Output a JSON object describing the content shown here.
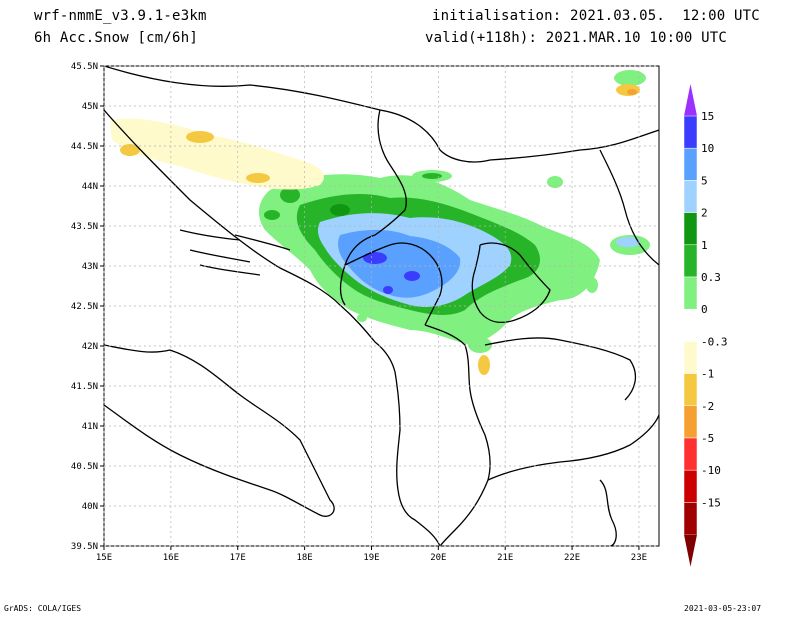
{
  "header": {
    "model": "wrf-nmmE_v3.9.1-e3km",
    "variable": "6h Acc.Snow [cm/6h]",
    "init": "initialisation: 2021.03.05.  12:00 UTC",
    "valid": "valid(+118h): 2021.MAR.10 10:00 UTC"
  },
  "map": {
    "lon_labels": [
      "15E",
      "16E",
      "17E",
      "18E",
      "19E",
      "20E",
      "21E",
      "22E",
      "23E"
    ],
    "lat_labels": [
      "45.5N",
      "45N",
      "44.5N",
      "44N",
      "43.5N",
      "43N",
      "42.5N",
      "42N",
      "41.5N",
      "41N",
      "40.5N",
      "40N",
      "39.5N"
    ],
    "lon_range": [
      15,
      23.3
    ],
    "lat_range": [
      39.5,
      45.5
    ]
  },
  "legend": {
    "labels": [
      "15",
      "10",
      "5",
      "2",
      "1",
      "0.3",
      "0",
      "-0.3",
      "-1",
      "-2",
      "-5",
      "-10",
      "-15"
    ],
    "colors": [
      "#9b30ff",
      "#3c3cff",
      "#5aa0ff",
      "#a0d2ff",
      "#109610",
      "#28b428",
      "#80f080",
      "#ffffff",
      "#fffacc",
      "#f5c842",
      "#f5a030",
      "#ff3030",
      "#cc0000",
      "#a00000",
      "#800000"
    ]
  },
  "footer": {
    "left": "GrADS: COLA/IGES",
    "right": "2021-03-05-23:07"
  }
}
